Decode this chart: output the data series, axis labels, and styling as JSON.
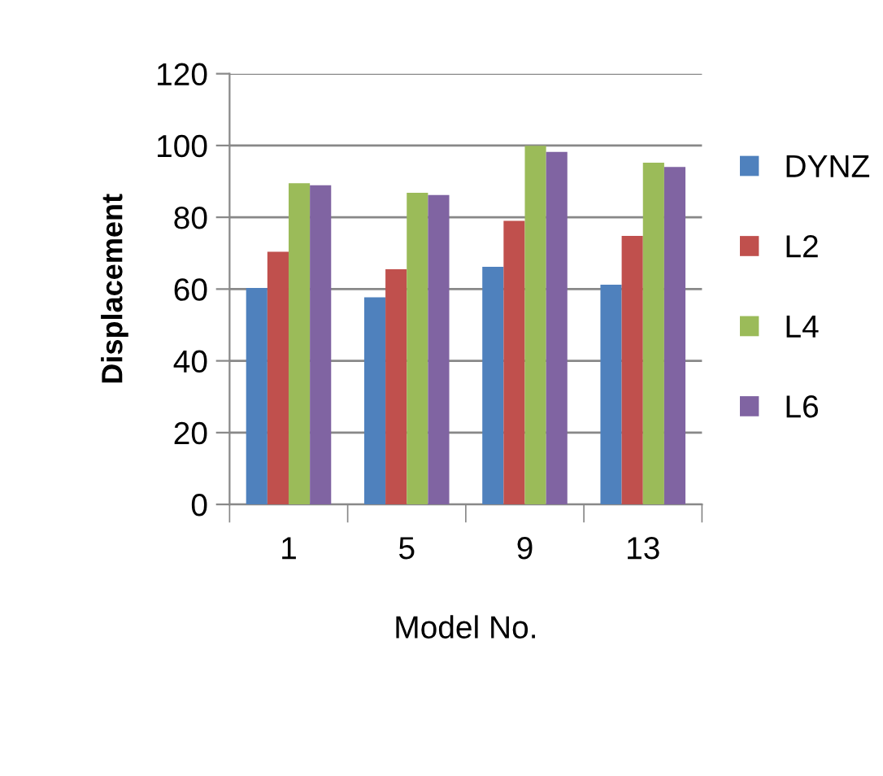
{
  "chart_data": {
    "type": "bar",
    "xlabel": "Model No.",
    "ylabel": "Displacement",
    "categories": [
      "1",
      "5",
      "9",
      "13"
    ],
    "series": [
      {
        "name": "DYNZ",
        "color": "#4f81bd",
        "values": [
          60.3,
          57.7,
          66.2,
          61.2
        ]
      },
      {
        "name": "L2",
        "color": "#c0504d",
        "values": [
          70.4,
          65.5,
          79.0,
          74.8
        ]
      },
      {
        "name": "L4",
        "color": "#9bbb59",
        "values": [
          89.5,
          86.8,
          99.9,
          95.2
        ]
      },
      {
        "name": "L6",
        "color": "#8064a2",
        "values": [
          88.9,
          86.2,
          98.2,
          94.0
        ]
      }
    ],
    "ylim": [
      0,
      120
    ],
    "yticks": [
      0,
      20,
      40,
      60,
      80,
      100,
      120
    ],
    "grid": "y",
    "legend": "right"
  }
}
